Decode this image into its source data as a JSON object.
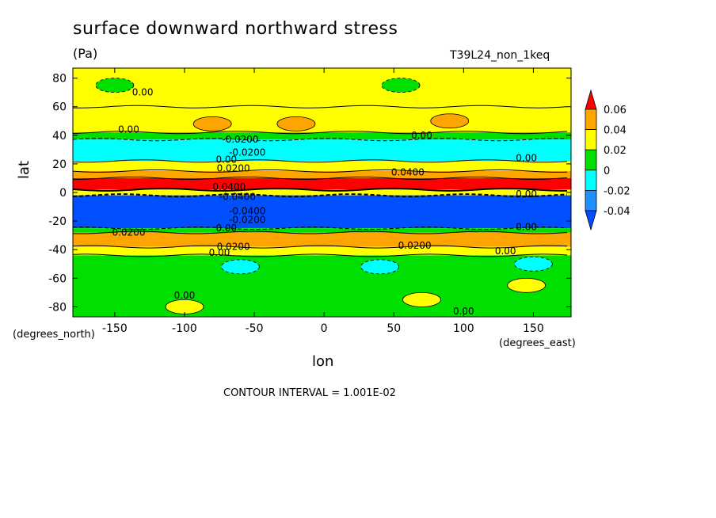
{
  "chart_data": {
    "type": "heatmap",
    "title": "surface downward northward stress",
    "units": "(Pa)",
    "run_label": "T39L24_non_1keq",
    "xlabel": "lon",
    "ylabel": "lat",
    "x_unit_label": "(degrees_east)",
    "y_unit_label": "(degrees_north)",
    "xlim": [
      -180,
      177
    ],
    "ylim": [
      -87,
      87
    ],
    "x_ticks": [
      -150,
      -100,
      -50,
      0,
      50,
      100,
      150
    ],
    "x_tick_labels": [
      "-150",
      "-100",
      "-50",
      "0",
      "50",
      "100",
      "150"
    ],
    "y_ticks": [
      -80,
      -60,
      -40,
      -20,
      0,
      20,
      40,
      60,
      80
    ],
    "y_tick_labels": [
      "-80",
      "-60",
      "-40",
      "-20",
      "0",
      "20",
      "40",
      "60",
      "80"
    ],
    "contour_interval_text": "CONTOUR INTERVAL = 1.001E-02",
    "colorbar": {
      "levels": [
        -0.04,
        -0.02,
        0,
        0.02,
        0.04,
        0.06
      ],
      "labels": [
        "-0.04",
        "-0.02",
        "0",
        "0.02",
        "0.04",
        "0.06"
      ],
      "colors": [
        "#1e90ff",
        "#00ffff",
        "#00e000",
        "#ffff00",
        "#ffa500",
        "#ff0000"
      ],
      "under_color": "#0050ff",
      "over_color": "#ff0000"
    },
    "zonal_bands": [
      {
        "lat": [
          60,
          87
        ],
        "value": 0.0
      },
      {
        "lat": [
          42,
          60
        ],
        "value": 0.005
      },
      {
        "lat": [
          37,
          42
        ],
        "value": -0.005
      },
      {
        "lat": [
          22,
          37
        ],
        "value": -0.025
      },
      {
        "lat": [
          15,
          22
        ],
        "value": 0.005
      },
      {
        "lat": [
          10,
          15
        ],
        "value": 0.025
      },
      {
        "lat": [
          2,
          10
        ],
        "value": 0.045
      },
      {
        "lat": [
          -2,
          2
        ],
        "value": 0.0
      },
      {
        "lat": [
          -25,
          -2
        ],
        "value": -0.045
      },
      {
        "lat": [
          -28,
          -25
        ],
        "value": -0.015
      },
      {
        "lat": [
          -38,
          -28
        ],
        "value": 0.025
      },
      {
        "lat": [
          -44,
          -38
        ],
        "value": 0.005
      },
      {
        "lat": [
          -87,
          -44
        ],
        "value": -0.005
      }
    ],
    "patches": [
      {
        "lon": -150,
        "lat": 75,
        "value": -0.005
      },
      {
        "lon": 55,
        "lat": 75,
        "value": -0.005
      },
      {
        "lon": 90,
        "lat": 50,
        "value": 0.025
      },
      {
        "lon": -80,
        "lat": 48,
        "value": 0.025
      },
      {
        "lon": -20,
        "lat": 48,
        "value": 0.025
      },
      {
        "lon": -100,
        "lat": -80,
        "value": 0.005
      },
      {
        "lon": 70,
        "lat": -75,
        "value": 0.005
      },
      {
        "lon": 145,
        "lat": -65,
        "value": 0.005
      },
      {
        "lon": 40,
        "lat": -52,
        "value": -0.025
      },
      {
        "lon": -60,
        "lat": -52,
        "value": -0.025
      },
      {
        "lon": 150,
        "lat": -50,
        "value": -0.025
      }
    ],
    "contour_labels": [
      {
        "text": "0.00",
        "lon": -130,
        "lat": 70
      },
      {
        "text": "0.00",
        "lon": -140,
        "lat": 44
      },
      {
        "text": "0.00",
        "lon": 70,
        "lat": 40
      },
      {
        "text": "-0.0200",
        "lon": -60,
        "lat": 37
      },
      {
        "text": "-0.0200",
        "lon": -55,
        "lat": 28
      },
      {
        "text": "0.00",
        "lon": -70,
        "lat": 23
      },
      {
        "text": "0.0200",
        "lon": -65,
        "lat": 17
      },
      {
        "text": "0.0400",
        "lon": 60,
        "lat": 14
      },
      {
        "text": "0.00",
        "lon": 145,
        "lat": 24
      },
      {
        "text": "0.0400",
        "lon": -68,
        "lat": 4
      },
      {
        "text": "-0.0400",
        "lon": -62,
        "lat": -3
      },
      {
        "text": "0.00",
        "lon": 145,
        "lat": -1
      },
      {
        "text": "-0.0400",
        "lon": -55,
        "lat": -13
      },
      {
        "text": "-0.0200",
        "lon": -55,
        "lat": -19
      },
      {
        "text": "0.00",
        "lon": -70,
        "lat": -25
      },
      {
        "text": "0.0200",
        "lon": -140,
        "lat": -28
      },
      {
        "text": "0.00",
        "lon": 145,
        "lat": -24
      },
      {
        "text": "0.0200",
        "lon": -65,
        "lat": -38
      },
      {
        "text": "0.0200",
        "lon": 65,
        "lat": -37
      },
      {
        "text": "0.00",
        "lon": -75,
        "lat": -42
      },
      {
        "text": "0.00",
        "lon": 130,
        "lat": -41
      },
      {
        "text": "0.00",
        "lon": -100,
        "lat": -72
      },
      {
        "text": "0.00",
        "lon": 100,
        "lat": -83
      }
    ]
  }
}
